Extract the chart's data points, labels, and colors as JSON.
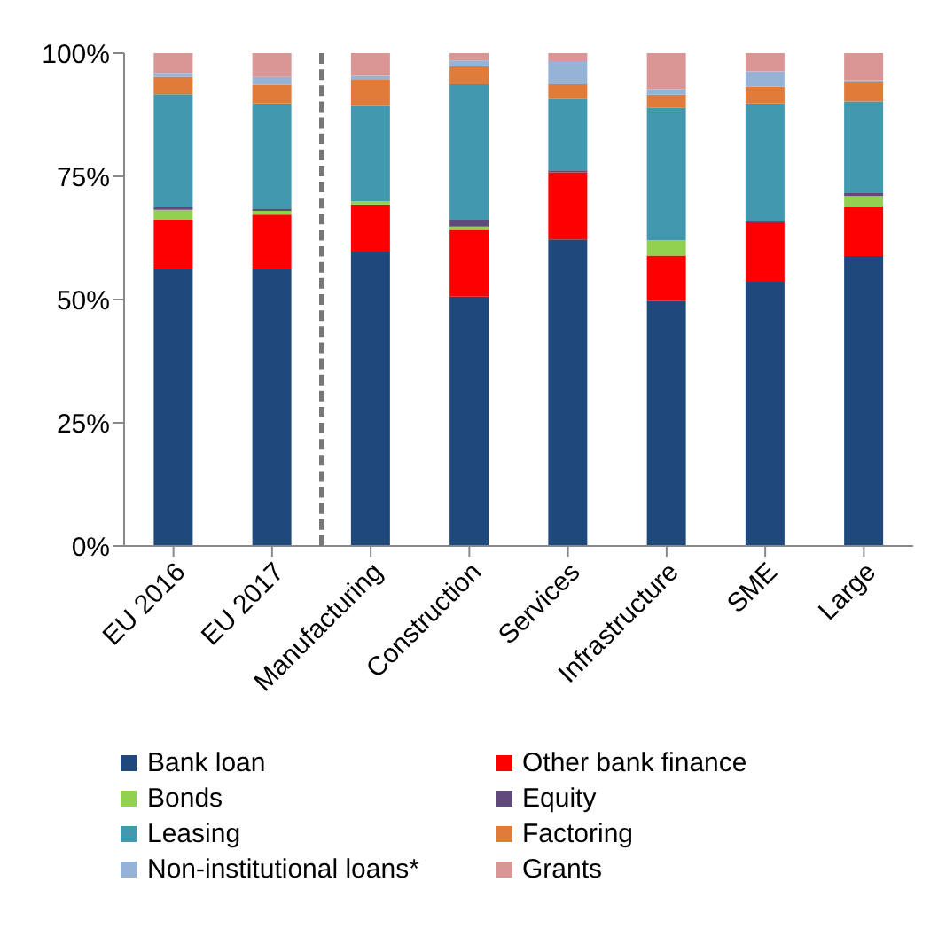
{
  "chart_data": {
    "type": "bar",
    "stacked": true,
    "categories": [
      "EU 2016",
      "EU 2017",
      "Manufacturing",
      "Construction",
      "Services",
      "Infrastructure",
      "SME",
      "Large"
    ],
    "series": [
      {
        "name": "Bank loan",
        "color": "#1f497d",
        "values": [
          56.2,
          56.2,
          59.7,
          50.6,
          62.2,
          49.7,
          53.6,
          58.8
        ]
      },
      {
        "name": "Other bank finance",
        "color": "#ff0000",
        "values": [
          10,
          11,
          9.6,
          13.7,
          13.6,
          9.2,
          12.1,
          10.1
        ]
      },
      {
        "name": "Bonds",
        "color": "#92d050",
        "values": [
          2,
          0.8,
          0.6,
          0.5,
          0,
          3.1,
          0,
          2.1
        ]
      },
      {
        "name": "Equity",
        "color": "#604a7b",
        "values": [
          0.5,
          0.5,
          0,
          1.4,
          0.4,
          0,
          0.3,
          0.6
        ]
      },
      {
        "name": "Leasing",
        "color": "#4198af",
        "values": [
          23,
          21.3,
          19.4,
          27.5,
          14.5,
          26.9,
          23.8,
          18.6
        ]
      },
      {
        "name": "Factoring",
        "color": "#e07b39",
        "values": [
          3.5,
          3.8,
          5.3,
          3.6,
          3,
          2.7,
          3.4,
          3.9
        ]
      },
      {
        "name": "Non-institutional loans*",
        "color": "#95b3d7",
        "values": [
          0.8,
          1.6,
          0.8,
          1.2,
          4.7,
          1.1,
          3.1,
          0.4
        ]
      },
      {
        "name": "Grants",
        "color": "#d99694",
        "values": [
          4,
          4.8,
          4.6,
          1.5,
          1.6,
          7.3,
          3.7,
          5.5
        ]
      }
    ],
    "ylim": [
      0,
      100
    ],
    "yticks": [
      {
        "value": 0,
        "label": "0%"
      },
      {
        "value": 25,
        "label": "25%"
      },
      {
        "value": 50,
        "label": "50%"
      },
      {
        "value": 75,
        "label": "75%"
      },
      {
        "value": 100,
        "label": "100%"
      }
    ],
    "legend": "bottom"
  }
}
